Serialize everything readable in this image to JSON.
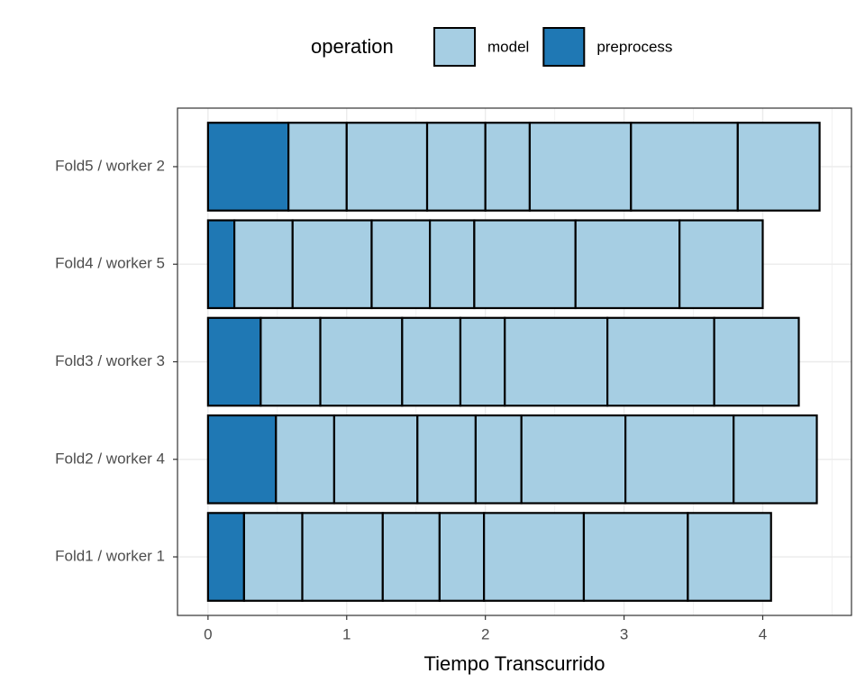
{
  "chart_data": {
    "type": "stacked-barh",
    "xlabel": "Tiempo Transcurrido",
    "legend_title": "operation",
    "legend_position": "top",
    "categories": [
      "Fold1 / worker 1",
      "Fold2 / worker 4",
      "Fold3 / worker 3",
      "Fold4 / worker 5",
      "Fold5 / worker 2"
    ],
    "series": [
      {
        "name": "model",
        "color": "#a6cee3",
        "values": [
          [
            0.42,
            0.58,
            0.41,
            0.32,
            0.72,
            0.75,
            0.6
          ],
          [
            0.42,
            0.6,
            0.42,
            0.33,
            0.75,
            0.78,
            0.6
          ],
          [
            0.43,
            0.59,
            0.42,
            0.32,
            0.74,
            0.77,
            0.61
          ],
          [
            0.42,
            0.57,
            0.42,
            0.32,
            0.73,
            0.75,
            0.6
          ],
          [
            0.42,
            0.58,
            0.42,
            0.32,
            0.73,
            0.77,
            0.59
          ]
        ]
      },
      {
        "name": "preprocess",
        "color": "#1f78b4",
        "values": [
          0.26,
          0.49,
          0.38,
          0.19,
          0.58
        ]
      }
    ],
    "xlim": [
      -0.22,
      4.64
    ],
    "xticks": [
      0,
      1,
      2,
      3,
      4
    ],
    "grid": true
  }
}
